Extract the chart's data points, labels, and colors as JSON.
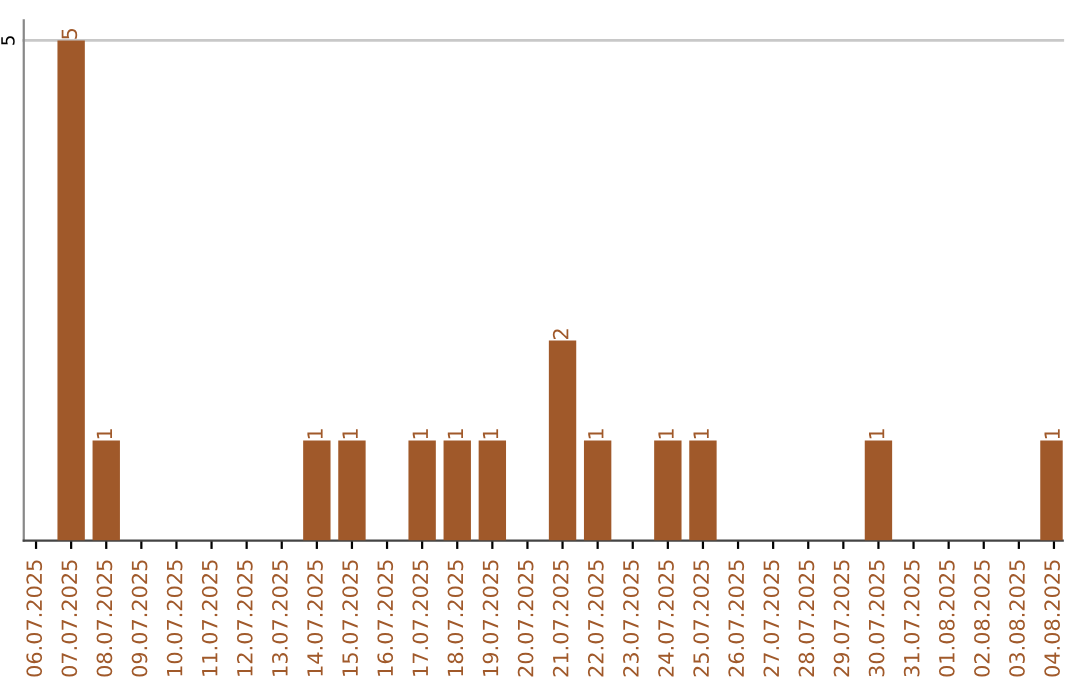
{
  "chart_data": {
    "type": "bar",
    "categories": [
      "06.07.2025",
      "07.07.2025",
      "08.07.2025",
      "09.07.2025",
      "10.07.2025",
      "11.07.2025",
      "12.07.2025",
      "13.07.2025",
      "14.07.2025",
      "15.07.2025",
      "16.07.2025",
      "17.07.2025",
      "18.07.2025",
      "19.07.2025",
      "20.07.2025",
      "21.07.2025",
      "22.07.2025",
      "23.07.2025",
      "24.07.2025",
      "25.07.2025",
      "26.07.2025",
      "27.07.2025",
      "28.07.2025",
      "29.07.2025",
      "30.07.2025",
      "31.07.2025",
      "01.08.2025",
      "02.08.2025",
      "03.08.2025",
      "04.08.2025"
    ],
    "values": [
      0,
      5,
      1,
      0,
      0,
      0,
      0,
      0,
      1,
      1,
      0,
      1,
      1,
      1,
      0,
      2,
      1,
      0,
      1,
      1,
      0,
      0,
      0,
      0,
      1,
      0,
      0,
      0,
      0,
      1
    ],
    "value_labels": [
      null,
      "5",
      "1",
      null,
      null,
      null,
      null,
      null,
      "1",
      "1",
      null,
      "1",
      "1",
      "1",
      null,
      "2",
      "1",
      null,
      "1",
      "1",
      null,
      null,
      null,
      null,
      "1",
      null,
      null,
      null,
      null,
      "1"
    ],
    "color": "#a0592a",
    "ylim": [
      0,
      5.2
    ],
    "yticks": [
      5
    ],
    "grid": "y",
    "legend": false
  }
}
